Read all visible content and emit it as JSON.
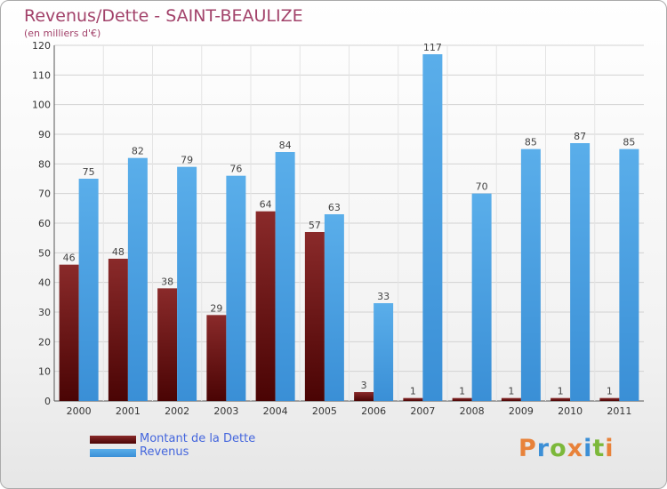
{
  "chart_data": {
    "type": "bar",
    "title": "Revenus/Dette - SAINT-BEAULIZE",
    "subtitle": "(en milliers d'€)",
    "categories": [
      "2000",
      "2001",
      "2002",
      "2003",
      "2004",
      "2005",
      "2006",
      "2007",
      "2008",
      "2009",
      "2010",
      "2011"
    ],
    "series": [
      {
        "name": "Montant de la Dette",
        "color": "#6b1010",
        "values": [
          46,
          48,
          38,
          29,
          64,
          57,
          3,
          1,
          1,
          1,
          1,
          1
        ]
      },
      {
        "name": "Revenus",
        "color": "#4ea1e3",
        "values": [
          75,
          82,
          79,
          76,
          84,
          63,
          33,
          117,
          70,
          85,
          87,
          85
        ]
      }
    ],
    "ylim": [
      0,
      120
    ],
    "yticks": [
      0,
      10,
      20,
      30,
      40,
      50,
      60,
      70,
      80,
      90,
      100,
      110,
      120
    ],
    "grid": true,
    "legend_position": "bottom-left"
  },
  "logo": {
    "text": "Proxiti",
    "colors": [
      "#e8823a",
      "#3c8fd6",
      "#7cb83a",
      "#e8823a",
      "#3c8fd6",
      "#7cb83a",
      "#e8823a"
    ]
  }
}
